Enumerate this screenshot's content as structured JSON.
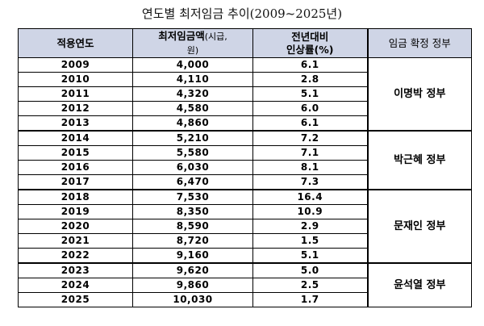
{
  "title": "연도별 최저임금 추이(2009~2025년)",
  "headers": {
    "year": "적용연도",
    "wage_line1": "최저임금액",
    "wage_small": "(시급,",
    "wage_line2": "원)",
    "rate_line1": "전년대비",
    "rate_line2": "인상률(%)",
    "government": "임금 확정 정부"
  },
  "rows": [
    {
      "year": "2009",
      "wage": "4,000",
      "rate": "6.1"
    },
    {
      "year": "2010",
      "wage": "4,110",
      "rate": "2.8"
    },
    {
      "year": "2011",
      "wage": "4,320",
      "rate": "5.1"
    },
    {
      "year": "2012",
      "wage": "4,580",
      "rate": "6.0"
    },
    {
      "year": "2013",
      "wage": "4,860",
      "rate": "6.1"
    },
    {
      "year": "2014",
      "wage": "5,210",
      "rate": "7.2"
    },
    {
      "year": "2015",
      "wage": "5,580",
      "rate": "7.1"
    },
    {
      "year": "2016",
      "wage": "6,030",
      "rate": "8.1"
    },
    {
      "year": "2017",
      "wage": "6,470",
      "rate": "7.3"
    },
    {
      "year": "2018",
      "wage": "7,530",
      "rate": "16.4"
    },
    {
      "year": "2019",
      "wage": "8,350",
      "rate": "10.9"
    },
    {
      "year": "2020",
      "wage": "8,590",
      "rate": "2.9"
    },
    {
      "year": "2021",
      "wage": "8,720",
      "rate": "1.5"
    },
    {
      "year": "2022",
      "wage": "9,160",
      "rate": "5.1"
    },
    {
      "year": "2023",
      "wage": "9,620",
      "rate": "5.0"
    },
    {
      "year": "2024",
      "wage": "9,860",
      "rate": "2.5"
    },
    {
      "year": "2025",
      "wage": "10,030",
      "rate": "1.7"
    }
  ],
  "governments": [
    {
      "name": "이명박 정부",
      "start": 0,
      "span": 5
    },
    {
      "name": "박근혜 정부",
      "start": 5,
      "span": 4
    },
    {
      "name": "문재인 정부",
      "start": 9,
      "span": 5
    },
    {
      "name": "윤석열 정부",
      "start": 14,
      "span": 3
    }
  ],
  "colors": {
    "header_bg": "#cfd5e6",
    "border": "#000000"
  }
}
